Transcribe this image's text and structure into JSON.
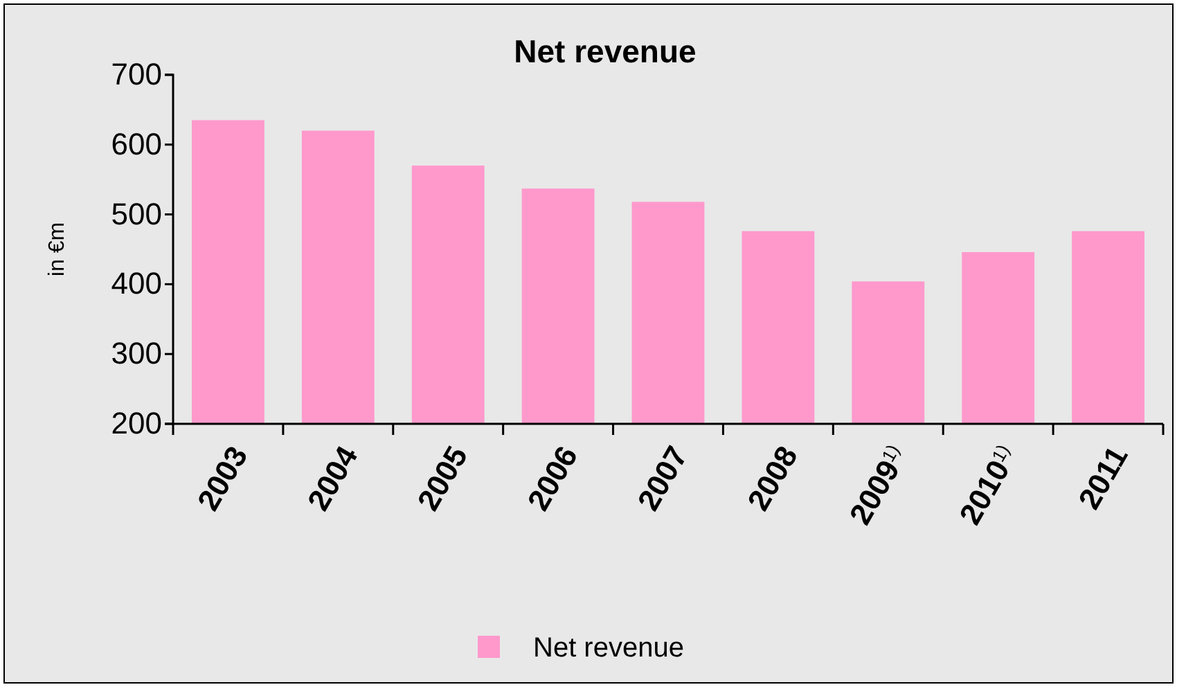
{
  "chart_data": {
    "type": "bar",
    "title": "Net revenue",
    "ylabel": "in €m",
    "categories": [
      "2003",
      "2004",
      "2005",
      "2006",
      "2007",
      "2008",
      "2009$^{1)}$",
      "2010$^{1)}$",
      "2011"
    ],
    "series": [
      {
        "name": "Net revenue",
        "color": "#ff99cc",
        "values": [
          635,
          620,
          570,
          537,
          518,
          476,
          404,
          446,
          476
        ]
      }
    ],
    "ylim": [
      200,
      700
    ],
    "yticks": [
      200,
      300,
      400,
      500,
      600,
      700
    ],
    "grid": false,
    "legend": "bottom"
  }
}
